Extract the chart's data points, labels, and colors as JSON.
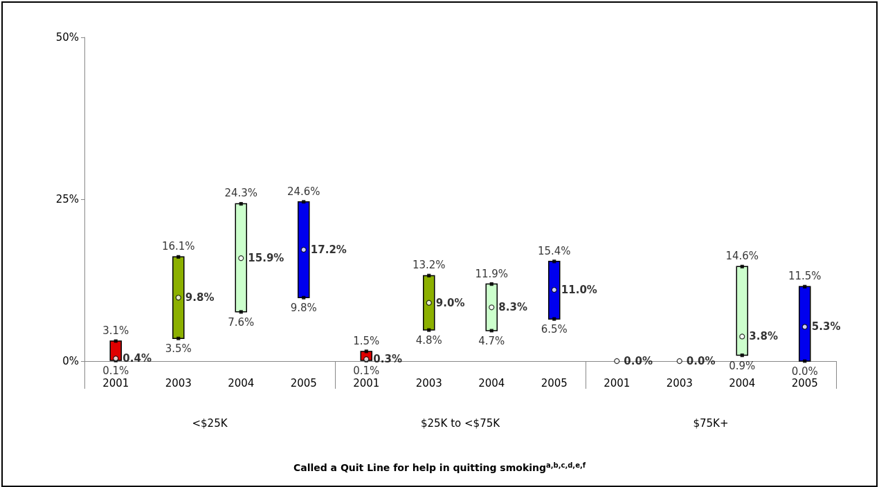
{
  "chart_data": {
    "type": "bar",
    "title": "Called a Quit Line for help in quitting smoking$^{a,b,c,d,e,f}$",
    "categories": [
      "2001",
      "2003",
      "2004",
      "2005",
      "2001",
      "2003",
      "2004",
      "2005",
      "2001",
      "2003",
      "2004",
      "2005"
    ],
    "annotations": [
      "<$25K",
      "$25K to <$75K",
      "$75K+"
    ],
    "ylim": [
      0,
      50
    ],
    "yticks": [
      {
        "value": 0,
        "label": "0%"
      },
      {
        "value": 25,
        "label": "25%"
      },
      {
        "value": 50,
        "label": "50%"
      }
    ],
    "grid": false,
    "series": [
      {
        "type": "bar",
        "base": [
          0.1,
          3.5,
          7.6,
          9.8,
          0.1,
          4.8,
          4.7,
          6.5,
          null,
          null,
          0.9,
          0.0
        ],
        "values": [
          3.0,
          12.6,
          16.7,
          14.8,
          1.4,
          8.4,
          7.2,
          8.9,
          null,
          null,
          13.7,
          11.5
        ],
        "colors": [
          "#e00000",
          "#8cb000",
          "#ccffcc",
          "#0000ee",
          "#e00000",
          "#8cb000",
          "#ccffcc",
          "#0000ee",
          null,
          null,
          "#ccffcc",
          "#0000ee"
        ]
      },
      {
        "type": "scatter",
        "marker": "square",
        "color": "#000000",
        "values": [
          3.1,
          16.1,
          24.3,
          24.6,
          1.5,
          13.2,
          11.9,
          15.4,
          null,
          null,
          14.6,
          11.5
        ],
        "value_labels": [
          "3.1%",
          "16.1%",
          "24.3%",
          "24.6%",
          "1.5%",
          "13.2%",
          "11.9%",
          "15.4%",
          null,
          null,
          "14.6%",
          "11.5%"
        ]
      },
      {
        "type": "scatter",
        "marker": "square",
        "color": "#000000",
        "values": [
          0.1,
          3.5,
          7.6,
          9.8,
          0.1,
          4.8,
          4.7,
          6.5,
          null,
          null,
          0.9,
          0.0
        ],
        "value_labels": [
          "0.1%",
          "3.5%",
          "7.6%",
          "9.8%",
          "0.1%",
          "4.8%",
          "4.7%",
          "6.5%",
          null,
          null,
          "0.9%",
          "0.0%"
        ]
      },
      {
        "type": "scatter",
        "marker": "circle",
        "color": "#ffffff",
        "values": [
          0.4,
          9.8,
          15.9,
          17.2,
          0.3,
          9.0,
          8.3,
          11.0,
          0.0,
          0.0,
          3.8,
          5.3
        ],
        "value_labels": [
          "0.4%",
          "9.8%",
          "15.9%",
          "17.2%",
          "0.3%",
          "9.0%",
          "8.3%",
          "11.0%",
          "0.0%",
          "0.0%",
          "3.8%",
          "5.3%"
        ]
      }
    ]
  }
}
